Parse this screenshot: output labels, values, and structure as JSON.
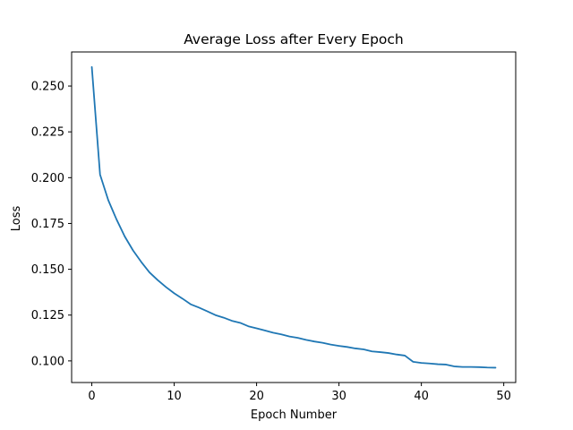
{
  "chart_data": {
    "type": "line",
    "title": "Average Loss after Every Epoch",
    "xlabel": "Epoch Number",
    "ylabel": "Loss",
    "xlim": [
      -2.45,
      51.45
    ],
    "ylim": [
      0.0882,
      0.2686
    ],
    "xticks": [
      0,
      10,
      20,
      30,
      40,
      50
    ],
    "yticks": [
      0.1,
      0.125,
      0.15,
      0.175,
      0.2,
      0.225,
      0.25
    ],
    "ytick_labels": [
      "0.100",
      "0.125",
      "0.150",
      "0.175",
      "0.200",
      "0.225",
      "0.250"
    ],
    "grid": false,
    "line_color": "#1f77b4",
    "series": [
      {
        "x": [
          0,
          1,
          2,
          3,
          4,
          5,
          6,
          7,
          8,
          9,
          10,
          11,
          12,
          13,
          14,
          15,
          16,
          17,
          18,
          19,
          20,
          21,
          22,
          23,
          24,
          25,
          26,
          27,
          28,
          29,
          30,
          31,
          32,
          33,
          34,
          35,
          36,
          37,
          38,
          39,
          40,
          41,
          42,
          43,
          44,
          45,
          46,
          47,
          48,
          49
        ],
        "values": [
          0.2604,
          0.2017,
          0.1877,
          0.1772,
          0.1679,
          0.1603,
          0.154,
          0.1483,
          0.1441,
          0.1403,
          0.1369,
          0.134,
          0.1309,
          0.1291,
          0.1271,
          0.125,
          0.1236,
          0.1219,
          0.1208,
          0.1189,
          0.1178,
          0.1166,
          0.1154,
          0.1145,
          0.1133,
          0.1126,
          0.1115,
          0.1106,
          0.1099,
          0.1089,
          0.1082,
          0.1076,
          0.1068,
          0.1063,
          0.1052,
          0.1048,
          0.1043,
          0.1035,
          0.1029,
          0.0995,
          0.0989,
          0.0986,
          0.0982,
          0.098,
          0.097,
          0.0967,
          0.0967,
          0.0966,
          0.0964,
          0.0963
        ]
      }
    ]
  }
}
